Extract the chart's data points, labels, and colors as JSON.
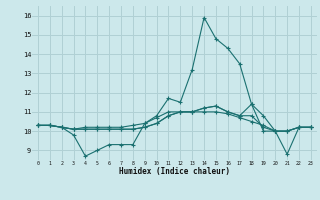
{
  "xlabel": "Humidex (Indice chaleur)",
  "ylabel": "",
  "xlim": [
    -0.5,
    23.5
  ],
  "ylim": [
    8.5,
    16.5
  ],
  "yticks": [
    9,
    10,
    11,
    12,
    13,
    14,
    15,
    16
  ],
  "xticks": [
    0,
    1,
    2,
    3,
    4,
    5,
    6,
    7,
    8,
    9,
    10,
    11,
    12,
    13,
    14,
    15,
    16,
    17,
    18,
    19,
    20,
    21,
    22,
    23
  ],
  "background_color": "#cce8eb",
  "grid_color": "#b0d0d4",
  "line_color": "#1a7070",
  "series": [
    [
      10.3,
      10.3,
      10.2,
      9.8,
      8.7,
      9.0,
      9.3,
      9.3,
      9.3,
      10.4,
      10.8,
      11.7,
      11.5,
      13.2,
      15.9,
      14.8,
      14.3,
      13.5,
      11.4,
      10.0,
      10.0,
      8.8,
      10.2,
      10.2
    ],
    [
      10.3,
      10.3,
      10.2,
      10.1,
      10.1,
      10.1,
      10.1,
      10.1,
      10.1,
      10.2,
      10.4,
      10.8,
      11.0,
      11.0,
      11.2,
      11.3,
      11.0,
      10.8,
      11.4,
      10.8,
      10.0,
      10.0,
      10.2,
      10.2
    ],
    [
      10.3,
      10.3,
      10.2,
      10.1,
      10.1,
      10.1,
      10.1,
      10.1,
      10.1,
      10.2,
      10.4,
      10.8,
      11.0,
      11.0,
      11.2,
      11.3,
      11.0,
      10.8,
      10.8,
      10.2,
      10.0,
      10.0,
      10.2,
      10.2
    ],
    [
      10.3,
      10.3,
      10.2,
      10.1,
      10.2,
      10.2,
      10.2,
      10.2,
      10.3,
      10.4,
      10.7,
      11.0,
      11.0,
      11.0,
      11.0,
      11.0,
      10.9,
      10.7,
      10.5,
      10.3,
      10.0,
      10.0,
      10.2,
      10.2
    ]
  ]
}
